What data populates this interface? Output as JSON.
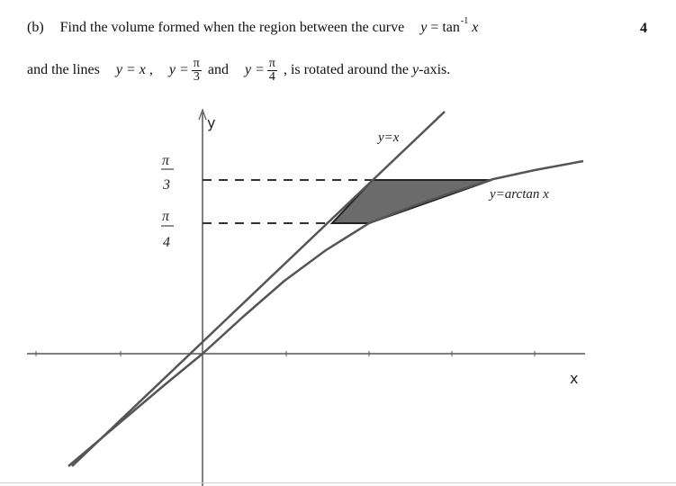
{
  "question": {
    "part": "(b)",
    "line1_text": "Find the volume formed when the region between the curve",
    "curve_y": "y",
    "curve_eq": "= tan",
    "curve_sup": "-1",
    "curve_x": "x",
    "line2_start": "and the lines",
    "line_yx": "y = x",
    "sep": ",",
    "y_eq": "y =",
    "pi": "π",
    "den1": "3",
    "and": "and",
    "den2": "4",
    "ending": ", is rotated around the",
    "axis_word": "y",
    "axis_suffix": "-axis.",
    "marks": "4"
  },
  "diagram": {
    "y_axis_label": "y",
    "x_axis_label": "x",
    "label_line": "y=x",
    "label_curve": "y=arctan x",
    "tick_pi": "π",
    "tick_den1": "3",
    "tick_den2": "4"
  }
}
